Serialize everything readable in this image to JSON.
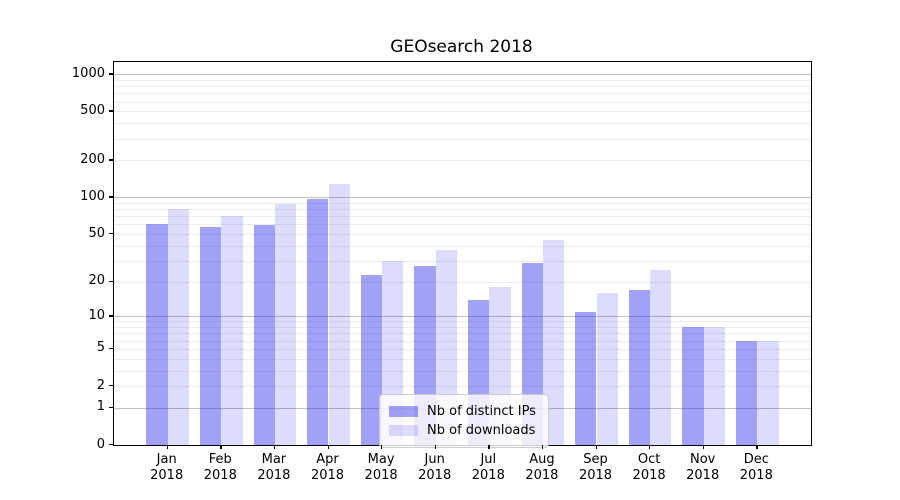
{
  "chart_data": {
    "type": "bar",
    "title": "GEOsearch 2018",
    "categories": [
      "Jan",
      "Feb",
      "Mar",
      "Apr",
      "May",
      "Jun",
      "Jul",
      "Aug",
      "Sep",
      "Oct",
      "Nov",
      "Dec"
    ],
    "category_year": "2018",
    "series": [
      {
        "name": "Nb of distinct IPs",
        "color": "#a3a3f2",
        "fill": "rgba(40,40,232,0.44)",
        "values": [
          61,
          57,
          59,
          97,
          23,
          27,
          14,
          29,
          11,
          17,
          8,
          6
        ]
      },
      {
        "name": "Nb of downloads",
        "color": "#dcdcf9",
        "fill": "rgba(40,40,232,0.16)",
        "values": [
          80,
          71,
          88,
          128,
          30,
          37,
          18,
          45,
          16,
          25,
          8,
          6
        ]
      }
    ],
    "yscale": "symlog-log1p",
    "yticks": [
      0,
      1,
      2,
      5,
      10,
      20,
      50,
      100,
      200,
      500,
      1000
    ],
    "ylim": [
      0,
      1257
    ],
    "grid": {
      "major_at": [
        1,
        10,
        100,
        1000
      ],
      "minor": "2-9 per decade",
      "major_color": "#c2c2c2",
      "minor_color": "#ececec"
    },
    "legend_position": "lower-center",
    "xlabel": "",
    "ylabel": ""
  }
}
